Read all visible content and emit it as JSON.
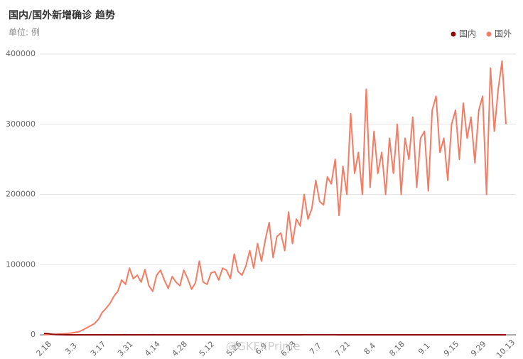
{
  "chart_data": {
    "type": "line",
    "title": "国内/国外新增确诊 趋势",
    "subtitle": "单位: 例",
    "watermark": "@GKFXPrime",
    "categories": [
      "2.18",
      null,
      null,
      null,
      null,
      null,
      null,
      "3.3",
      null,
      null,
      null,
      null,
      null,
      null,
      "3.17",
      null,
      null,
      null,
      null,
      null,
      null,
      "3.31",
      null,
      null,
      null,
      null,
      null,
      null,
      "4.14",
      null,
      null,
      null,
      null,
      null,
      null,
      "4.28",
      null,
      null,
      null,
      null,
      null,
      null,
      "5.12",
      null,
      null,
      null,
      null,
      null,
      null,
      "5.26",
      null,
      null,
      null,
      null,
      null,
      null,
      "6.9",
      null,
      null,
      null,
      null,
      null,
      null,
      "6.23",
      null,
      null,
      null,
      null,
      null,
      null,
      "7.7",
      null,
      null,
      null,
      null,
      null,
      null,
      "7.21",
      null,
      null,
      null,
      null,
      null,
      null,
      "8.4",
      null,
      null,
      null,
      null,
      null,
      null,
      "8.18",
      null,
      null,
      null,
      null,
      null,
      null,
      "9.1",
      null,
      null,
      null,
      null,
      null,
      null,
      "9.15",
      null,
      null,
      null,
      null,
      null,
      null,
      "9.29",
      null,
      null,
      null,
      null,
      null,
      null,
      "10.13"
    ],
    "series": [
      {
        "name": "国内",
        "color": "#8b0a0a",
        "values": [
          2000,
          1800,
          900,
          400,
          200,
          100,
          40,
          30,
          25,
          20,
          30,
          40,
          35,
          50,
          30,
          45,
          60,
          40,
          50,
          35,
          45,
          55,
          40,
          30,
          35,
          50,
          45,
          30,
          60,
          40,
          25,
          20,
          15,
          10,
          12,
          8,
          10,
          6,
          8,
          12,
          15,
          10,
          8,
          6,
          10,
          12,
          8,
          5,
          6,
          10,
          15,
          20,
          30,
          40,
          25,
          20,
          15,
          10,
          12,
          18,
          22,
          20,
          15,
          18,
          22,
          30,
          45,
          60,
          80,
          120,
          100,
          90,
          110,
          80,
          70,
          60,
          40,
          35,
          30,
          25,
          20,
          22,
          18,
          15,
          20,
          15,
          12,
          14,
          18,
          22,
          15,
          20,
          25,
          18,
          15,
          20,
          16,
          12,
          15,
          18,
          20,
          14,
          12,
          16,
          20,
          22,
          18,
          25,
          20,
          15,
          18,
          22,
          25,
          20,
          30,
          28,
          22,
          18,
          20,
          25
        ]
      },
      {
        "name": "国外",
        "color": "#f47c64",
        "values": [
          200,
          300,
          500,
          800,
          1200,
          1500,
          2000,
          2500,
          3500,
          4500,
          7000,
          10000,
          13000,
          16000,
          22000,
          32000,
          38000,
          45000,
          55000,
          62000,
          78000,
          72000,
          95000,
          80000,
          85000,
          75000,
          93000,
          70000,
          62000,
          85000,
          92000,
          78000,
          66000,
          83000,
          75000,
          70000,
          92000,
          80000,
          65000,
          74000,
          105000,
          75000,
          72000,
          88000,
          90000,
          78000,
          95000,
          92000,
          80000,
          115000,
          90000,
          85000,
          98000,
          120000,
          95000,
          130000,
          105000,
          135000,
          160000,
          110000,
          140000,
          145000,
          120000,
          175000,
          130000,
          165000,
          155000,
          200000,
          165000,
          180000,
          220000,
          190000,
          185000,
          225000,
          215000,
          250000,
          170000,
          240000,
          200000,
          315000,
          230000,
          260000,
          200000,
          350000,
          210000,
          290000,
          230000,
          260000,
          200000,
          280000,
          230000,
          300000,
          200000,
          280000,
          250000,
          310000,
          210000,
          280000,
          290000,
          205000,
          320000,
          340000,
          260000,
          280000,
          220000,
          300000,
          320000,
          250000,
          330000,
          280000,
          310000,
          245000,
          320000,
          340000,
          200000,
          380000,
          290000,
          350000,
          390000,
          300000
        ]
      }
    ],
    "ylim": [
      0,
      400000
    ],
    "yticks": [
      0,
      100000,
      200000,
      300000,
      400000
    ],
    "grid": true,
    "legend": "top-right"
  }
}
